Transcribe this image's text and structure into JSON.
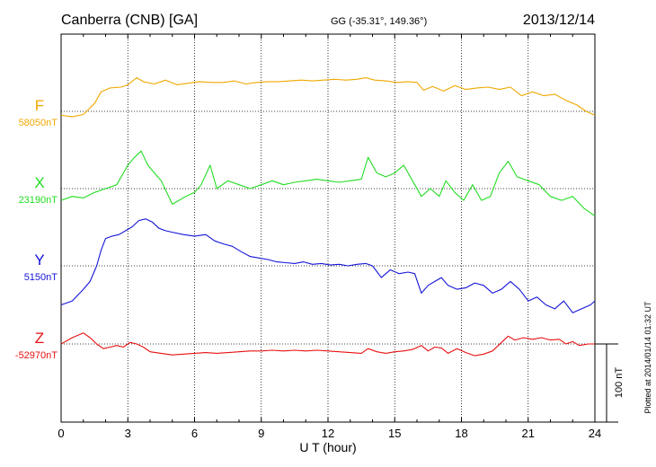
{
  "chart_data": {
    "type": "line",
    "station": "Canberra (CNB)  [GA]",
    "coords": "GG (-35.31°, 149.36°)",
    "date": "2013/12/14",
    "xlabel": "U T (hour)",
    "xlim": [
      0,
      24
    ],
    "x_ticks": [
      "0",
      "3",
      "6",
      "9",
      "12",
      "15",
      "18",
      "21",
      "24"
    ],
    "grid": true,
    "scale_bar": "100 nT",
    "plotted_note": "Plotted at 2014/01/14 01:32 UT",
    "series": [
      {
        "name": "F",
        "baseline": "58050nT",
        "color": "#f0a800",
        "x": [
          0,
          0.5,
          1,
          1.5,
          1.8,
          2.2,
          2.7,
          3,
          3.4,
          3.7,
          4.2,
          4.7,
          5.2,
          5.7,
          6.2,
          6.8,
          7.3,
          7.8,
          8.3,
          8.8,
          9.3,
          9.8,
          10.3,
          10.8,
          11.3,
          11.8,
          12.3,
          12.8,
          13.3,
          13.7,
          14.1,
          14.6,
          15.1,
          15.6,
          16.0,
          16.3,
          16.7,
          17.2,
          17.7,
          18.2,
          18.7,
          19.2,
          19.7,
          20.2,
          20.7,
          21.2,
          21.7,
          22.2,
          22.7,
          23.2,
          23.6,
          24
        ],
        "y": [
          -5,
          -7,
          -4,
          10,
          25,
          30,
          31,
          34,
          43,
          38,
          35,
          40,
          34,
          36,
          38,
          37,
          37,
          39,
          35,
          37,
          38,
          38,
          39,
          40,
          39,
          40,
          41,
          40,
          41,
          43,
          40,
          39,
          37,
          38,
          37,
          27,
          32,
          26,
          33,
          28,
          30,
          31,
          28,
          31,
          20,
          25,
          20,
          22,
          14,
          8,
          0,
          -5
        ]
      },
      {
        "name": "X",
        "baseline": "23190nT",
        "color": "#22dd22",
        "x": [
          0,
          0.5,
          1,
          1.5,
          2,
          2.5,
          3,
          3.3,
          3.6,
          3.9,
          4.2,
          4.5,
          5,
          5.3,
          5.6,
          6,
          6.3,
          6.7,
          7,
          7.5,
          8,
          8.5,
          9,
          9.5,
          10,
          10.5,
          11,
          11.5,
          12,
          12.5,
          13,
          13.5,
          13.8,
          14.2,
          14.6,
          15,
          15.4,
          15.8,
          16.2,
          16.6,
          17,
          17.3,
          17.7,
          18.1,
          18.5,
          18.9,
          19.3,
          19.7,
          20.1,
          20.5,
          21,
          21.5,
          22,
          22.5,
          23,
          23.5,
          24
        ],
        "y": [
          -15,
          -10,
          -12,
          -5,
          0,
          5,
          30,
          40,
          48,
          30,
          20,
          10,
          -20,
          -15,
          -10,
          -5,
          5,
          30,
          0,
          10,
          5,
          0,
          5,
          10,
          5,
          8,
          10,
          12,
          10,
          8,
          10,
          12,
          40,
          20,
          15,
          20,
          30,
          10,
          -10,
          0,
          -10,
          10,
          -5,
          -15,
          5,
          -15,
          -10,
          20,
          35,
          15,
          10,
          5,
          -10,
          -15,
          -10,
          -25,
          -35
        ]
      },
      {
        "name": "Y",
        "baseline": "5150nT",
        "color": "#1414d8",
        "x": [
          0,
          0.5,
          1,
          1.3,
          1.6,
          1.8,
          2.0,
          2.3,
          2.6,
          2.9,
          3.2,
          3.5,
          3.8,
          4.1,
          4.4,
          4.7,
          5.0,
          5.5,
          6.0,
          6.5,
          6.9,
          7.3,
          7.7,
          8.1,
          8.5,
          8.9,
          9.3,
          9.7,
          10.1,
          10.5,
          10.9,
          11.3,
          11.7,
          12.1,
          12.5,
          12.9,
          13.3,
          13.7,
          14.0,
          14.4,
          14.8,
          15.2,
          15.6,
          15.9,
          16.2,
          16.5,
          16.8,
          17.1,
          17.4,
          17.8,
          18.2,
          18.6,
          19.0,
          19.4,
          19.8,
          20.2,
          20.6,
          21.0,
          21.4,
          21.8,
          22.2,
          22.6,
          23.0,
          23.4,
          23.8,
          24
        ],
        "y": [
          -50,
          -45,
          -30,
          -20,
          0,
          20,
          35,
          38,
          40,
          45,
          50,
          58,
          60,
          56,
          48,
          45,
          43,
          40,
          38,
          40,
          32,
          28,
          25,
          18,
          12,
          10,
          8,
          5,
          4,
          3,
          5,
          2,
          3,
          1,
          2,
          0,
          2,
          3,
          0,
          -15,
          -5,
          -10,
          -8,
          -10,
          -35,
          -25,
          -20,
          -15,
          -25,
          -30,
          -28,
          -22,
          -25,
          -35,
          -30,
          -20,
          -30,
          -45,
          -40,
          -50,
          -55,
          -45,
          -60,
          -55,
          -50,
          -45
        ]
      },
      {
        "name": "Z",
        "baseline": "-52970nT",
        "color": "#e81010",
        "x": [
          0,
          0.5,
          1,
          1.3,
          1.6,
          1.9,
          2.2,
          2.5,
          2.8,
          3.1,
          3.4,
          3.7,
          4.0,
          4.5,
          5.0,
          5.5,
          6.0,
          6.5,
          7.0,
          7.5,
          8.0,
          8.5,
          9.0,
          9.5,
          10.0,
          10.5,
          11.0,
          11.5,
          12.0,
          12.5,
          13.0,
          13.5,
          13.8,
          14.2,
          14.6,
          15.0,
          15.4,
          15.8,
          16.2,
          16.5,
          16.8,
          17.1,
          17.4,
          17.8,
          18.2,
          18.6,
          19.0,
          19.4,
          19.8,
          20.1,
          20.4,
          20.8,
          21.2,
          21.6,
          22.0,
          22.4,
          22.7,
          23.0,
          23.3,
          23.7,
          24
        ],
        "y": [
          0,
          8,
          14,
          8,
          0,
          -6,
          -4,
          -2,
          -4,
          2,
          0,
          -4,
          -10,
          -12,
          -14,
          -13,
          -12,
          -11,
          -12,
          -11,
          -10,
          -9,
          -9,
          -8,
          -9,
          -8,
          -9,
          -8,
          -9,
          -10,
          -11,
          -12,
          -6,
          -10,
          -12,
          -10,
          -9,
          -7,
          -2,
          -9,
          -4,
          -5,
          -12,
          -6,
          -11,
          -15,
          -13,
          -9,
          2,
          10,
          5,
          8,
          6,
          8,
          5,
          6,
          0,
          3,
          -2,
          0,
          0
        ]
      }
    ]
  }
}
